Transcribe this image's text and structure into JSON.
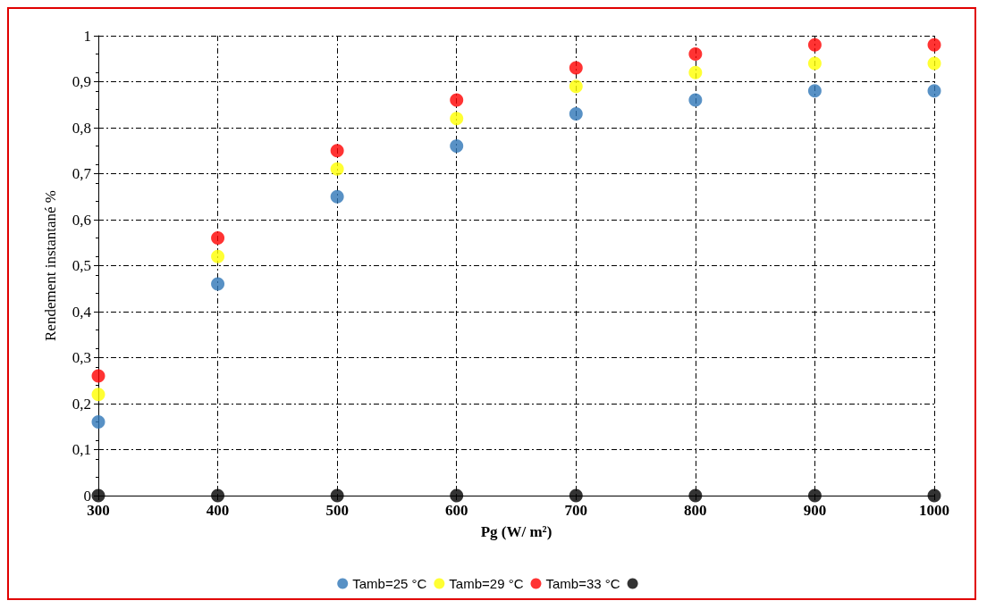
{
  "chart_data": {
    "type": "scatter",
    "xlabel": "Pg (W/ m²)",
    "ylabel": "Rendement instantané %",
    "x": [
      300,
      400,
      500,
      600,
      700,
      800,
      900,
      1000
    ],
    "series": [
      {
        "name": "Tamb=25 °C",
        "color": "#2e75b6",
        "values": [
          0.16,
          0.46,
          0.65,
          0.76,
          0.83,
          0.86,
          0.88,
          0.88
        ]
      },
      {
        "name": "Tamb=29 °C",
        "color": "#ffff00",
        "values": [
          0.22,
          0.52,
          0.71,
          0.82,
          0.89,
          0.92,
          0.94,
          0.94
        ]
      },
      {
        "name": "Tamb=33 °C",
        "color": "#ff0000",
        "values": [
          0.26,
          0.56,
          0.75,
          0.86,
          0.93,
          0.96,
          0.98,
          0.98
        ]
      },
      {
        "color": "#000000",
        "values": [
          0,
          0,
          0,
          0,
          0,
          0,
          0,
          0
        ]
      }
    ],
    "xlim": [
      300,
      1000
    ],
    "xticks": [
      300,
      400,
      500,
      600,
      700,
      800,
      900,
      1000
    ],
    "ylim": [
      0,
      1
    ],
    "yticks": [
      {
        "value": 0,
        "label": "0"
      },
      {
        "value": 0.1,
        "label": "0,1"
      },
      {
        "value": 0.2,
        "label": "0,2"
      },
      {
        "value": 0.3,
        "label": "0,3"
      },
      {
        "value": 0.4,
        "label": "0,4"
      },
      {
        "value": 0.5,
        "label": "0,5"
      },
      {
        "value": 0.6,
        "label": "0,6"
      },
      {
        "value": 0.7,
        "label": "0,7"
      },
      {
        "value": 0.8,
        "label": "0,8"
      },
      {
        "value": 0.9,
        "label": "0,9"
      },
      {
        "value": 1,
        "label": "1"
      }
    ],
    "grid": true,
    "legend": "bottom",
    "marker": "circle"
  }
}
